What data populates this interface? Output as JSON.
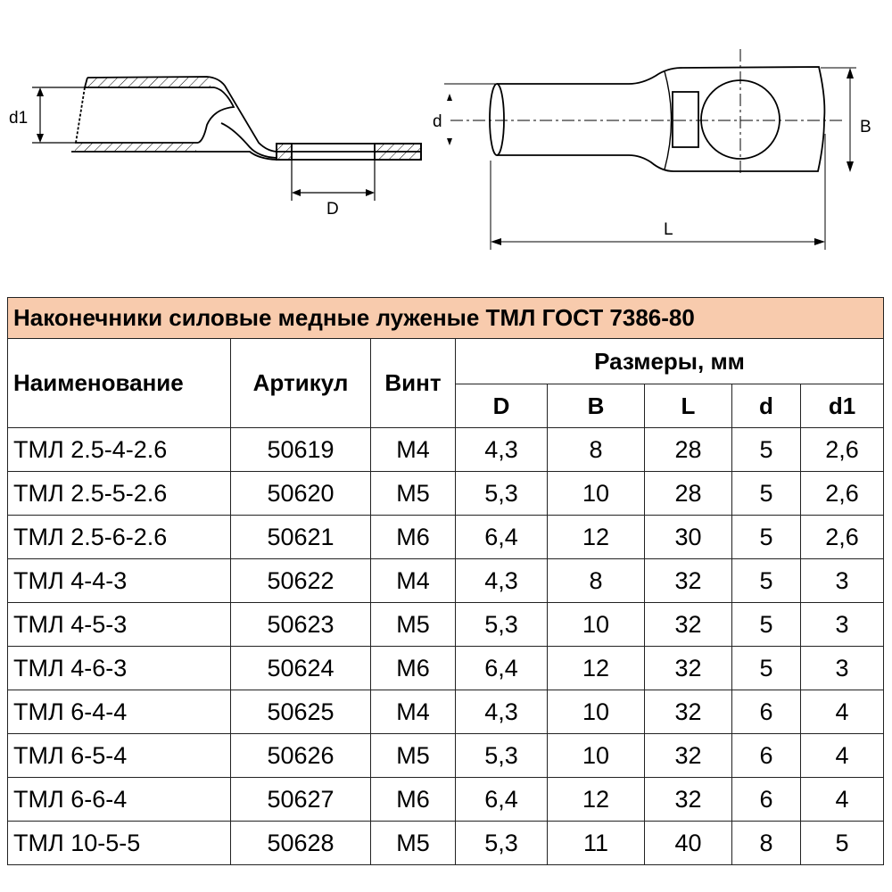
{
  "drawings": {
    "side_view": {
      "labels": {
        "d1": "d1",
        "D": "D"
      }
    },
    "top_view": {
      "labels": {
        "d": "d",
        "B": "B",
        "L": "L"
      }
    }
  },
  "table": {
    "title": "Наконечники силовые медные луженые ТМЛ ГОСТ 7386-80",
    "title_bg": "#f8cbad",
    "headers": {
      "name": "Наименование",
      "article": "Артикул",
      "screw": "Винт",
      "dimensions": "Размеры, мм",
      "dims": [
        "D",
        "B",
        "L",
        "d",
        "d1"
      ]
    },
    "rows": [
      [
        "ТМЛ 2.5-4-2.6",
        "50619",
        "М4",
        "4,3",
        "8",
        "28",
        "5",
        "2,6"
      ],
      [
        "ТМЛ 2.5-5-2.6",
        "50620",
        "М5",
        "5,3",
        "10",
        "28",
        "5",
        "2,6"
      ],
      [
        "ТМЛ 2.5-6-2.6",
        "50621",
        "М6",
        "6,4",
        "12",
        "30",
        "5",
        "2,6"
      ],
      [
        "ТМЛ 4-4-3",
        "50622",
        "М4",
        "4,3",
        "8",
        "32",
        "5",
        "3"
      ],
      [
        "ТМЛ 4-5-3",
        "50623",
        "М5",
        "5,3",
        "10",
        "32",
        "5",
        "3"
      ],
      [
        "ТМЛ 4-6-3",
        "50624",
        "М6",
        "6,4",
        "12",
        "32",
        "5",
        "3"
      ],
      [
        "ТМЛ 6-4-4",
        "50625",
        "М4",
        "4,3",
        "10",
        "32",
        "6",
        "4"
      ],
      [
        "ТМЛ 6-5-4",
        "50626",
        "М5",
        "5,3",
        "10",
        "32",
        "6",
        "4"
      ],
      [
        "ТМЛ 6-6-4",
        "50627",
        "М6",
        "6,4",
        "12",
        "32",
        "6",
        "4"
      ],
      [
        "ТМЛ 10-5-5",
        "50628",
        "М5",
        "5,3",
        "11",
        "40",
        "8",
        "5"
      ]
    ]
  }
}
